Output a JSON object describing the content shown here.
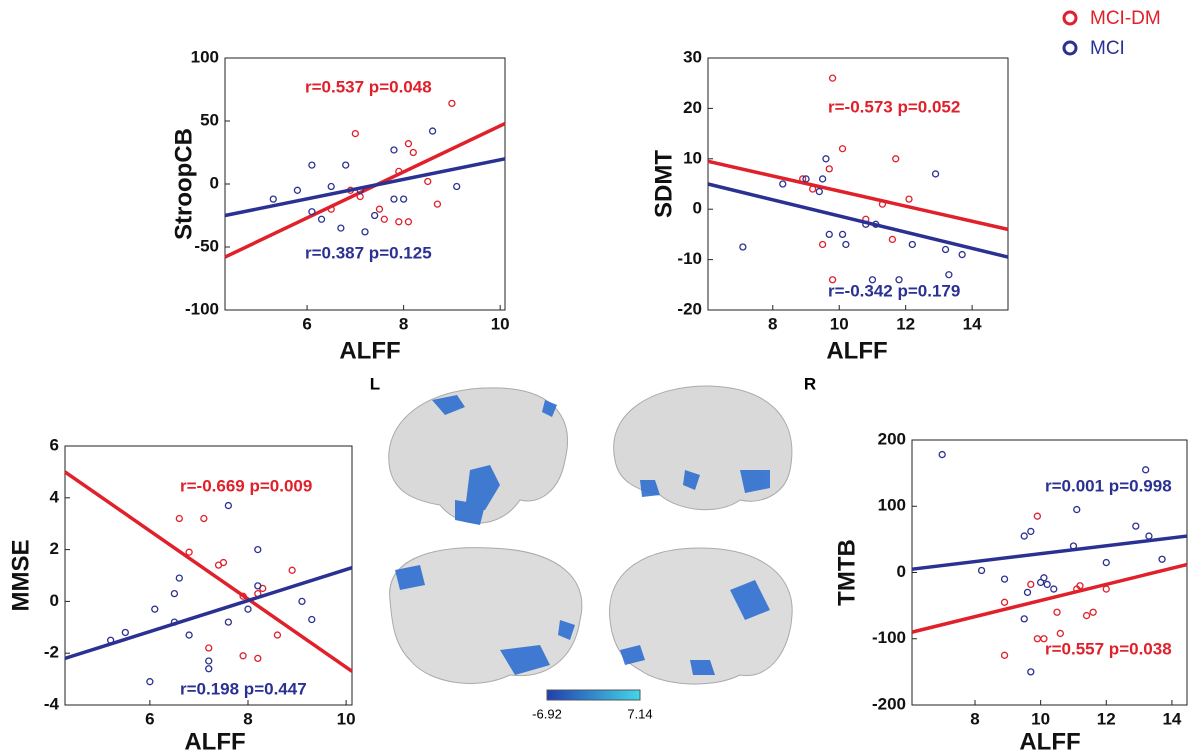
{
  "chart_data": [
    {
      "type": "scatter",
      "xlabel": "ALFF",
      "ylabel": "StroopCB",
      "xlim": [
        4.3,
        10.1
      ],
      "ylim": [
        -100,
        100
      ],
      "xticks": [
        6,
        8,
        10
      ],
      "yticks": [
        -100,
        -50,
        0,
        50,
        100
      ],
      "series": [
        {
          "name": "MCI-DM",
          "color": "#e0202a",
          "annotation": "r=0.537 p=0.048",
          "x": [
            7.0,
            9.0,
            8.1,
            8.2,
            8.5,
            7.9,
            6.9,
            7.5,
            7.6,
            7.9,
            8.1,
            8.7,
            6.5,
            7.1
          ],
          "y": [
            40,
            64,
            32,
            25,
            2,
            10,
            -5,
            -20,
            -28,
            -30,
            -30,
            -16,
            -20,
            -10
          ],
          "fit_x": [
            4.3,
            10.1
          ],
          "fit_y": [
            -58,
            48
          ]
        },
        {
          "name": "MCI",
          "color": "#2b3192",
          "annotation": "r=0.387 p=0.125",
          "x": [
            5.3,
            5.8,
            6.1,
            6.3,
            6.5,
            6.8,
            7.8,
            8.6,
            9.1,
            6.7,
            7.2,
            7.4,
            8.0,
            7.8,
            6.1,
            7.1
          ],
          "y": [
            -12,
            -5,
            15,
            -28,
            -2,
            15,
            27,
            42,
            -2,
            -35,
            -38,
            -25,
            -12,
            -12,
            -22,
            -5
          ],
          "fit_x": [
            4.3,
            10.1
          ],
          "fit_y": [
            -25,
            20
          ]
        }
      ]
    },
    {
      "type": "scatter",
      "xlabel": "ALFF",
      "ylabel": "SDMT",
      "xlim": [
        6.05,
        15.08
      ],
      "ylim": [
        -20,
        30
      ],
      "xticks": [
        8,
        10,
        12,
        14
      ],
      "yticks": [
        -20,
        -10,
        0,
        10,
        20,
        30
      ],
      "series": [
        {
          "name": "MCI-DM",
          "color": "#e0202a",
          "annotation": "r=-0.573 p=0.052",
          "x": [
            9.8,
            10.1,
            9.7,
            11.7,
            11.3,
            12.1,
            9.5,
            9.8,
            10.8,
            11.6,
            9.2,
            8.9
          ],
          "y": [
            26,
            12,
            8,
            10,
            1,
            2,
            -7,
            -14,
            -2,
            -6,
            4,
            6
          ],
          "fit_x": [
            6.05,
            15.08
          ],
          "fit_y": [
            9.5,
            -4
          ]
        },
        {
          "name": "MCI",
          "color": "#2b3192",
          "annotation": "r=-0.342 p=0.179",
          "x": [
            7.1,
            8.3,
            9.0,
            9.4,
            9.6,
            9.7,
            10.1,
            10.2,
            10.8,
            11.0,
            11.1,
            12.2,
            12.9,
            13.2,
            13.3,
            13.7,
            11.8,
            9.5
          ],
          "y": [
            -7.5,
            5,
            6,
            3.5,
            10,
            -5,
            -5,
            -7,
            -3,
            -14,
            -3,
            -7,
            7,
            -8,
            -13,
            -9,
            -14,
            6
          ],
          "fit_x": [
            6.05,
            15.08
          ],
          "fit_y": [
            5,
            -9.5
          ]
        }
      ]
    },
    {
      "type": "scatter",
      "xlabel": "ALFF",
      "ylabel": "MMSE",
      "xlim": [
        4.27,
        10.12
      ],
      "ylim": [
        -4,
        6
      ],
      "xticks": [
        6,
        8,
        10
      ],
      "yticks": [
        -4,
        -2,
        0,
        2,
        4,
        6
      ],
      "series": [
        {
          "name": "MCI-DM",
          "color": "#e0202a",
          "annotation": "r=-0.669 p=0.009",
          "x": [
            6.6,
            7.1,
            6.8,
            7.4,
            7.5,
            7.9,
            8.2,
            8.3,
            8.9,
            8.6,
            7.2,
            7.9,
            8.2
          ],
          "y": [
            3.2,
            3.2,
            1.9,
            1.4,
            1.5,
            0.2,
            0.3,
            0.5,
            1.2,
            -1.3,
            -1.8,
            -2.1,
            -2.2
          ],
          "fit_x": [
            4.27,
            10.12
          ],
          "fit_y": [
            5.0,
            -2.7
          ]
        },
        {
          "name": "MCI",
          "color": "#2b3192",
          "annotation": "r=0.198 p=0.447",
          "x": [
            5.2,
            6.0,
            6.1,
            6.6,
            6.5,
            6.8,
            7.2,
            7.2,
            7.6,
            8.2,
            8.0,
            8.2,
            9.3,
            9.1,
            7.6,
            6.5,
            5.5
          ],
          "y": [
            -1.5,
            -3.1,
            -0.3,
            0.9,
            0.3,
            -1.3,
            -2.3,
            -2.6,
            3.7,
            2.0,
            -0.3,
            0.6,
            -0.7,
            0.0,
            -0.8,
            -0.8,
            -1.2
          ],
          "fit_x": [
            4.27,
            10.12
          ],
          "fit_y": [
            -2.2,
            1.3
          ]
        }
      ]
    },
    {
      "type": "scatter",
      "xlabel": "ALFF",
      "ylabel": "TMTB",
      "xlim": [
        6.08,
        14.46
      ],
      "ylim": [
        -200,
        200
      ],
      "xticks": [
        8,
        10,
        12,
        14
      ],
      "yticks": [
        -200,
        -100,
        0,
        100,
        200
      ],
      "series": [
        {
          "name": "MCI-DM",
          "color": "#e0202a",
          "annotation": "r=0.557 p=0.038",
          "x": [
            9.9,
            9.7,
            8.9,
            10.5,
            10.6,
            10.1,
            9.9,
            11.4,
            11.6,
            11.1,
            12.0,
            11.2,
            8.9
          ],
          "y": [
            85,
            -18,
            -45,
            -60,
            -92,
            -100,
            -100,
            -65,
            -60,
            -25,
            -25,
            -20,
            -125
          ],
          "fit_x": [
            6.08,
            14.46
          ],
          "fit_y": [
            -90,
            12
          ]
        },
        {
          "name": "MCI",
          "color": "#2b3192",
          "annotation": "r=0.001 p=0.998",
          "x": [
            7.0,
            9.7,
            9.5,
            8.2,
            8.9,
            9.5,
            9.6,
            10.0,
            10.2,
            10.4,
            10.1,
            11.0,
            11.1,
            13.2,
            12.9,
            13.3,
            13.7,
            12.0,
            9.7
          ],
          "y": [
            178,
            62,
            55,
            3,
            -10,
            -70,
            -30,
            -15,
            -18,
            -25,
            -8,
            40,
            95,
            155,
            70,
            55,
            20,
            15,
            -150
          ],
          "fit_x": [
            6.08,
            14.46
          ],
          "fit_y": [
            5,
            55
          ]
        }
      ]
    }
  ],
  "brain": {
    "left_label": "L",
    "right_label": "R",
    "colorbar": {
      "min": -6.92,
      "max": 7.14,
      "colors": [
        "#1f3fb0",
        "#43d6e8"
      ]
    }
  }
}
